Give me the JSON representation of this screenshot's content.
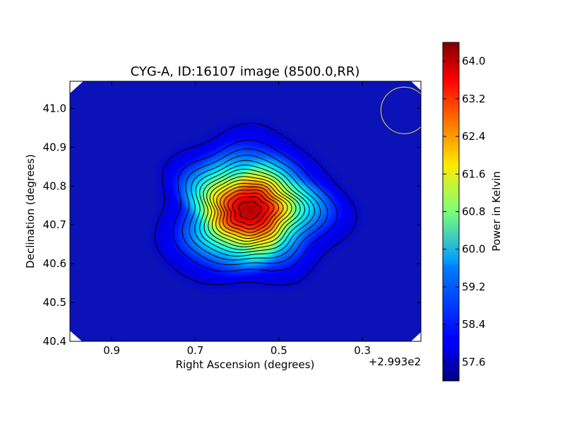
{
  "chart_data": {
    "type": "heatmap",
    "title": "CYG-A, ID:16107 image (8500.0,RR)",
    "xlabel": "Right Ascension (degrees)",
    "ylabel": "Declination (degrees)",
    "x_offset_label": "+2.993e2",
    "xlim": [
      1.0,
      0.16
    ],
    "ylim": [
      40.4,
      41.07
    ],
    "x_ticks": [
      {
        "value": 0.9,
        "label": "0.9"
      },
      {
        "value": 0.7,
        "label": "0.7"
      },
      {
        "value": 0.5,
        "label": "0.5"
      },
      {
        "value": 0.3,
        "label": "0.3"
      }
    ],
    "y_ticks": [
      {
        "value": 40.4,
        "label": "40.4"
      },
      {
        "value": 40.5,
        "label": "40.5"
      },
      {
        "value": 40.6,
        "label": "40.6"
      },
      {
        "value": 40.7,
        "label": "40.7"
      },
      {
        "value": 40.8,
        "label": "40.8"
      },
      {
        "value": 40.9,
        "label": "40.9"
      },
      {
        "value": 41.0,
        "label": "41.0"
      }
    ],
    "source": {
      "name": "CYG-A",
      "peak_ra_offset": 0.57,
      "peak_dec": 40.738,
      "peak_value": 64.2,
      "background_value": 57.7
    },
    "beam": {
      "ra_offset": 0.2,
      "dec": 40.995,
      "radius_deg": 0.06,
      "color": "#c8c832"
    },
    "contour_color": "#000000",
    "colorbar": {
      "label": "Power in Kelvin",
      "min": 57.2,
      "max": 64.4,
      "cmap": "jet",
      "ticks": [
        {
          "value": 57.6,
          "label": "57.6"
        },
        {
          "value": 58.4,
          "label": "58.4"
        },
        {
          "value": 59.2,
          "label": "59.2"
        },
        {
          "value": 60.0,
          "label": "60.0"
        },
        {
          "value": 60.8,
          "label": "60.8"
        },
        {
          "value": 61.6,
          "label": "61.6"
        },
        {
          "value": 62.4,
          "label": "62.4"
        },
        {
          "value": 63.2,
          "label": "63.2"
        },
        {
          "value": 64.0,
          "label": "64.0"
        }
      ]
    }
  }
}
